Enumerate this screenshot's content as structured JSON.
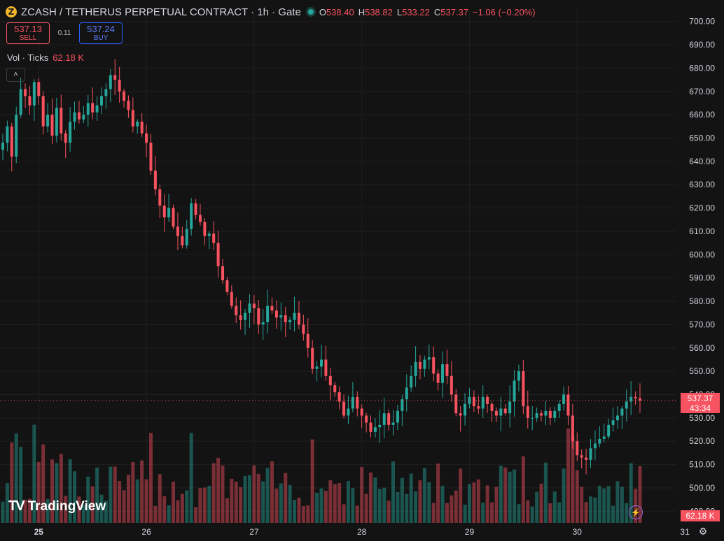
{
  "header": {
    "coin_symbol": "Z",
    "title": "ZCASH / TETHERUS PERPETUAL CONTRACT · 1h · Gate",
    "ohlc": [
      {
        "k": "O",
        "v": "538.40"
      },
      {
        "k": "H",
        "v": "538.82"
      },
      {
        "k": "L",
        "v": "533.22"
      },
      {
        "k": "C",
        "v": "537.37"
      },
      {
        "k": "",
        "v": "−1.06 (−0.20%)"
      }
    ]
  },
  "trade": {
    "sell_price": "537.13",
    "sell_label": "SELL",
    "spread": "0.11",
    "buy_price": "537.24",
    "buy_label": "BUY"
  },
  "volume_legend": {
    "label": "Vol · Ticks",
    "value": "62.18 K"
  },
  "collapse_icon": "chevron-up-icon",
  "price_tag": {
    "price": "537.37",
    "countdown": "43:34"
  },
  "volume_tag": "62.18 K",
  "logo_text": "TradingView",
  "colors": {
    "up": "#26a69a",
    "down": "#f7525f",
    "background": "#131313",
    "grid": "#1f1f1f"
  },
  "chart_data": {
    "type": "candlestick",
    "grid": true,
    "y_axis": {
      "position": "right",
      "min": 485,
      "max": 705,
      "ticks": [
        "490.00",
        "500.00",
        "510.00",
        "520.00",
        "530.00",
        "540.00",
        "550.00",
        "560.00",
        "570.00",
        "580.00",
        "590.00",
        "600.00",
        "610.00",
        "620.00",
        "630.00",
        "640.00",
        "650.00",
        "660.00",
        "670.00",
        "680.00",
        "690.00",
        "700.00"
      ]
    },
    "x_axis": {
      "labels": [
        "25",
        "26",
        "27",
        "28",
        "29",
        "30",
        "31"
      ],
      "bold_label": "25",
      "label_candle_index": [
        8,
        32,
        56,
        80,
        104,
        128,
        152
      ]
    },
    "current_price": 537.37,
    "candles_close": [
      648,
      655,
      642,
      660,
      671,
      668,
      664,
      674,
      668,
      655,
      660,
      651,
      663,
      652,
      648,
      657,
      661,
      658,
      660,
      665,
      661,
      664,
      668,
      671,
      677,
      675,
      670,
      666,
      662,
      655,
      657,
      652,
      648,
      636,
      628,
      621,
      616,
      620,
      612,
      608,
      604,
      611,
      622,
      617,
      614,
      608,
      609,
      605,
      595,
      589,
      584,
      578,
      574,
      572,
      575,
      579,
      577,
      570,
      571,
      578,
      576,
      573,
      574,
      571,
      572,
      575,
      570,
      566,
      560,
      551,
      552,
      555,
      548,
      544,
      541,
      537,
      531,
      534,
      539,
      534,
      531,
      528,
      524,
      526,
      527,
      532,
      527,
      528,
      533,
      538,
      543,
      548,
      554,
      551,
      555,
      556,
      549,
      545,
      553,
      548,
      540,
      532,
      531,
      536,
      539,
      535,
      534,
      539,
      536,
      533,
      531,
      534,
      532,
      537,
      546,
      550,
      535,
      530,
      530,
      532,
      531,
      533,
      530,
      533,
      536,
      540,
      531,
      520,
      514,
      513,
      512,
      517,
      519,
      521,
      522,
      527,
      529,
      531,
      534,
      537,
      539,
      538.4,
      537.37
    ],
    "volume_unit": "K",
    "volume_max": 80
  }
}
